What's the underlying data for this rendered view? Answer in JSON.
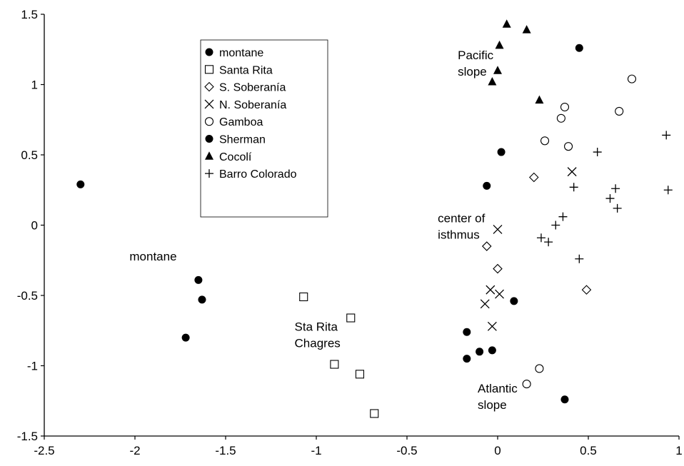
{
  "chart_data": {
    "type": "scatter",
    "title": "",
    "xlabel": "",
    "ylabel": "",
    "xlim": [
      -2.5,
      1
    ],
    "ylim": [
      -1.5,
      1.5
    ],
    "x_ticks": [
      -2.5,
      -2,
      -1.5,
      -1,
      -0.5,
      0,
      0.5,
      1
    ],
    "x_tick_labels": [
      "-2.5",
      "-2",
      "-1.5",
      "-1",
      "-0.5",
      "0",
      "0.5",
      "1"
    ],
    "y_ticks": [
      -1.5,
      -1,
      -0.5,
      0,
      0.5,
      1,
      1.5
    ],
    "y_tick_labels": [
      "-1.5",
      "-1",
      "-0.5",
      "0",
      "0.5",
      "1",
      "1.5"
    ],
    "grid": false,
    "legend_position": "top-left",
    "series": [
      {
        "name": "montane",
        "marker": "filled-circle",
        "points": [
          [
            -2.3,
            0.29
          ],
          [
            -1.65,
            -0.39
          ],
          [
            -1.63,
            -0.53
          ],
          [
            -1.72,
            -0.8
          ]
        ]
      },
      {
        "name": "Santa Rita",
        "marker": "open-square",
        "points": [
          [
            -1.07,
            -0.51
          ],
          [
            -0.81,
            -0.66
          ],
          [
            -0.9,
            -0.99
          ],
          [
            -0.76,
            -1.06
          ],
          [
            -0.68,
            -1.34
          ]
        ]
      },
      {
        "name": "S. Soberanía",
        "marker": "open-diamond",
        "points": [
          [
            0.2,
            0.34
          ],
          [
            -0.06,
            -0.15
          ],
          [
            0.0,
            -0.31
          ],
          [
            0.49,
            -0.46
          ]
        ]
      },
      {
        "name": "N. Soberanía",
        "marker": "x",
        "points": [
          [
            0.41,
            0.38
          ],
          [
            0.0,
            -0.03
          ],
          [
            -0.04,
            -0.46
          ],
          [
            0.01,
            -0.49
          ],
          [
            -0.07,
            -0.56
          ],
          [
            -0.03,
            -0.72
          ]
        ]
      },
      {
        "name": "Gamboa",
        "marker": "open-circle",
        "points": [
          [
            0.74,
            1.04
          ],
          [
            0.37,
            0.84
          ],
          [
            0.35,
            0.76
          ],
          [
            0.67,
            0.81
          ],
          [
            0.26,
            0.6
          ],
          [
            0.39,
            0.56
          ],
          [
            0.23,
            -1.02
          ],
          [
            0.16,
            -1.13
          ]
        ]
      },
      {
        "name": "Sherman",
        "marker": "filled-circle",
        "points": [
          [
            0.45,
            1.26
          ],
          [
            0.02,
            0.52
          ],
          [
            -0.06,
            0.28
          ],
          [
            0.09,
            -0.54
          ],
          [
            -0.17,
            -0.76
          ],
          [
            -0.1,
            -0.9
          ],
          [
            -0.03,
            -0.89
          ],
          [
            -0.17,
            -0.95
          ],
          [
            0.37,
            -1.24
          ]
        ]
      },
      {
        "name": "Cocolí",
        "marker": "filled-triangle",
        "points": [
          [
            0.05,
            1.43
          ],
          [
            0.16,
            1.39
          ],
          [
            0.01,
            1.28
          ],
          [
            0.0,
            1.1
          ],
          [
            -0.03,
            1.02
          ],
          [
            0.23,
            0.89
          ]
        ]
      },
      {
        "name": "Barro Colorado",
        "marker": "plus",
        "points": [
          [
            0.93,
            0.64
          ],
          [
            0.55,
            0.52
          ],
          [
            0.94,
            0.25
          ],
          [
            0.65,
            0.26
          ],
          [
            0.62,
            0.19
          ],
          [
            0.66,
            0.12
          ],
          [
            0.42,
            0.27
          ],
          [
            0.36,
            0.06
          ],
          [
            0.32,
            0.0
          ],
          [
            0.24,
            -0.09
          ],
          [
            0.28,
            -0.12
          ],
          [
            0.45,
            -0.24
          ]
        ]
      }
    ],
    "annotations": [
      {
        "lines": [
          "Pacific",
          "slope"
        ],
        "x": -0.22,
        "y": 1.18
      },
      {
        "lines": [
          "center of",
          "isthmus"
        ],
        "x": -0.33,
        "y": 0.02
      },
      {
        "lines": [
          "montane"
        ],
        "x": -2.03,
        "y": -0.25
      },
      {
        "lines": [
          "Sta Rita",
          "Chagres"
        ],
        "x": -1.12,
        "y": -0.75
      },
      {
        "lines": [
          "Atlantic",
          "slope"
        ],
        "x": -0.11,
        "y": -1.19
      }
    ]
  }
}
